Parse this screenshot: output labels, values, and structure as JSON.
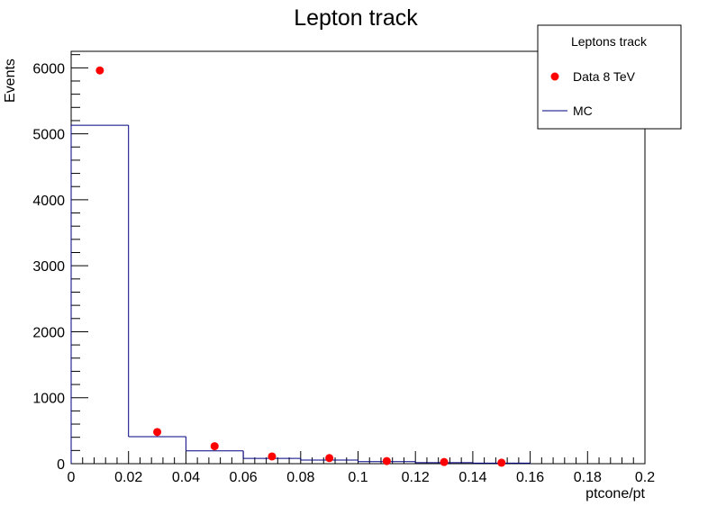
{
  "chart_data": {
    "type": "scatter",
    "title": "Lepton track",
    "xlabel": "ptcone/pt",
    "ylabel": "Events",
    "xlim": [
      0,
      0.2
    ],
    "ylim": [
      0,
      6250
    ],
    "x_ticks": [
      0,
      0.02,
      0.04,
      0.06,
      0.08,
      0.1,
      0.12,
      0.14,
      0.16,
      0.18,
      0.2
    ],
    "x_tick_labels": [
      "0",
      "0.02",
      "0.04",
      "0.06",
      "0.08",
      "0.1",
      "0.12",
      "0.14",
      "0.16",
      "0.18",
      "0.2"
    ],
    "y_ticks": [
      0,
      1000,
      2000,
      3000,
      4000,
      5000,
      6000
    ],
    "y_tick_labels": [
      "0",
      "1000",
      "2000",
      "3000",
      "4000",
      "5000",
      "6000"
    ],
    "legend": {
      "title": "Leptons track",
      "placement": "top-right",
      "entries": [
        {
          "label": "Data 8 TeV",
          "kind": "marker",
          "color": "#ff0000"
        },
        {
          "label": "MC",
          "kind": "line",
          "color": "#000080"
        }
      ]
    },
    "series": [
      {
        "name": "Data 8 TeV",
        "kind": "points",
        "color": "#ff0000",
        "x": [
          0.01,
          0.03,
          0.05,
          0.07,
          0.09,
          0.11,
          0.13,
          0.15
        ],
        "y": [
          5960,
          480,
          265,
          110,
          85,
          40,
          25,
          15
        ]
      },
      {
        "name": "MC",
        "kind": "histogram",
        "color": "#000080",
        "bin_edges": [
          0,
          0.02,
          0.04,
          0.06,
          0.08,
          0.1,
          0.12,
          0.14,
          0.16
        ],
        "values": [
          5130,
          410,
          195,
          80,
          55,
          30,
          15,
          8
        ]
      }
    ]
  }
}
